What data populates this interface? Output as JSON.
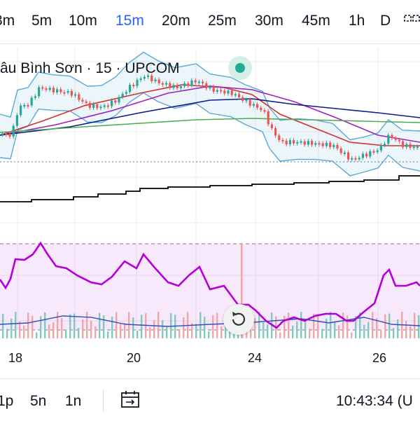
{
  "timeframes": [
    "3m",
    "5m",
    "10m",
    "15m",
    "20m",
    "25m",
    "30m",
    "45m",
    "1h",
    "D"
  ],
  "active_timeframe": "15m",
  "symbol_title": "âu Bình Sơn · 15 · UPCOM",
  "status_color": "#22ab94",
  "x_axis_labels": [
    "18",
    "20",
    "24",
    "26"
  ],
  "ranges": [
    "1p",
    "5n",
    "1n"
  ],
  "clock": "10:43:34 (U",
  "icons": {
    "layout": "layout-icon",
    "status": "live-status-dot",
    "reset": "reset-chart-icon",
    "goto": "goto-date-icon"
  },
  "colors": {
    "candle_up": "#26a69a",
    "candle_down": "#ef5350",
    "rsi_line": "#b300d6",
    "bollinger": "#5aa9d6",
    "ma_red": "#d32f2f",
    "ma_purple": "#a020c0",
    "ma_navy": "#0d1a8c",
    "ma_green": "#4caf50",
    "stop_line": "#000000"
  }
}
